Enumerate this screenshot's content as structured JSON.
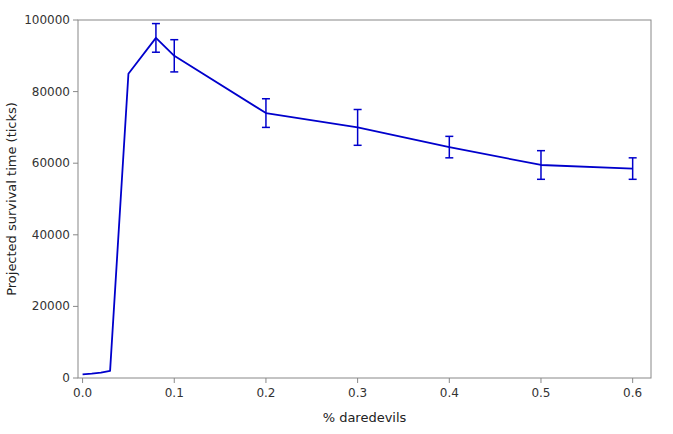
{
  "chart_data": {
    "type": "line",
    "x": [
      0.0,
      0.01,
      0.02,
      0.03,
      0.05,
      0.08,
      0.1,
      0.2,
      0.3,
      0.4,
      0.5,
      0.6
    ],
    "values": [
      1000,
      1200,
      1500,
      2000,
      85000,
      95000,
      90000,
      74000,
      70000,
      64500,
      59500,
      58500
    ],
    "errors": [
      null,
      null,
      null,
      null,
      null,
      4000,
      4500,
      4000,
      5000,
      3000,
      4000,
      3000
    ],
    "color": "#0000cc",
    "xlabel": "% daredevils",
    "ylabel": "Projected survival time (ticks)",
    "xlim": [
      -0.005,
      0.62
    ],
    "ylim": [
      0,
      100000
    ],
    "xticks": [
      {
        "value": 0.0,
        "label": "0.0"
      },
      0.1,
      0.2,
      0.3,
      0.4,
      0.5,
      0.6
    ],
    "yticks": [
      0,
      20000,
      40000,
      60000,
      80000,
      100000
    ],
    "grid": false
  }
}
